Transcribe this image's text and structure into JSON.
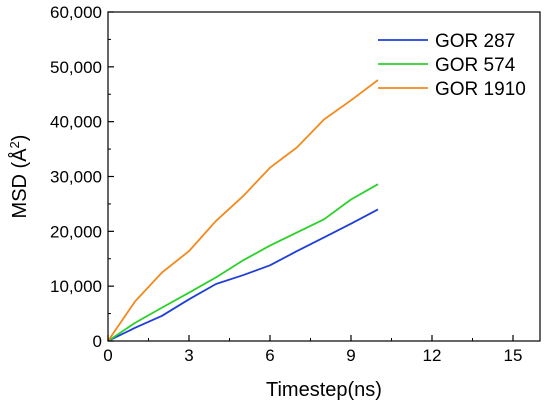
{
  "chart_data": {
    "type": "line",
    "xlabel": "Timestep(ns)",
    "ylabel_main": "MSD (Å",
    "ylabel_sup": "2",
    "ylabel_close": ")",
    "xlim": [
      0,
      16
    ],
    "ylim": [
      0,
      60000
    ],
    "x_ticks": [
      0,
      3,
      6,
      9,
      12,
      15
    ],
    "x_tick_labels": [
      "0",
      "3",
      "6",
      "9",
      "12",
      "15"
    ],
    "y_ticks": [
      0,
      10000,
      20000,
      30000,
      40000,
      50000,
      60000
    ],
    "y_tick_labels": [
      "0",
      "10,000",
      "20,000",
      "30,000",
      "40,000",
      "50,000",
      "60,000"
    ],
    "legend_position": "top-right",
    "series": [
      {
        "name": "GOR 287",
        "color": "#1f3fd6",
        "x": [
          0,
          1,
          2,
          3,
          4,
          5,
          6,
          7,
          8,
          9,
          10
        ],
        "y": [
          0,
          2400,
          4600,
          7600,
          10400,
          12000,
          13800,
          16400,
          18900,
          21400,
          24000
        ]
      },
      {
        "name": "GOR 574",
        "color": "#2bd12b",
        "x": [
          0,
          1,
          2,
          3,
          4,
          5,
          6,
          7,
          8,
          9,
          10
        ],
        "y": [
          0,
          3300,
          6100,
          8800,
          11600,
          14700,
          17400,
          19800,
          22200,
          25800,
          28600
        ]
      },
      {
        "name": "GOR 1910",
        "color": "#f28a1e",
        "x": [
          0,
          1,
          2,
          3,
          4,
          5,
          6,
          7,
          8,
          9,
          10
        ],
        "y": [
          0,
          7200,
          12500,
          16400,
          21900,
          26400,
          31600,
          35300,
          40400,
          43900,
          47600
        ]
      }
    ]
  }
}
